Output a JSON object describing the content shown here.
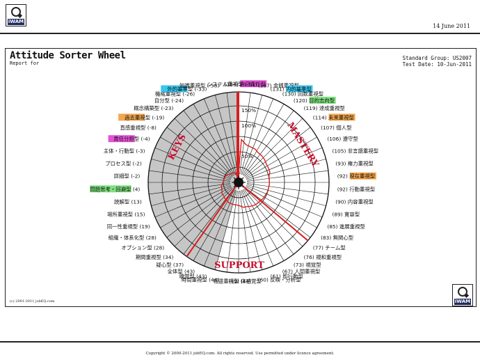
{
  "header": {
    "logo_text": "iWAM",
    "date": "14 June 2011"
  },
  "report": {
    "title": "Attitude Sorter Wheel",
    "subtitle": "Report for",
    "standard_group": "Standard Group: US2007",
    "test_date": "Test Date: 10-Jun-2011",
    "inner_copyright": "(c) 2001-2011 jobEQ.com"
  },
  "footer": {
    "copyright": "Copyright © 2000-2011 jobEQ.com. All rights reserved. Use permitted under licence agreement."
  },
  "colors": {
    "magenta": "#e451d6",
    "cyan": "#39c6f0",
    "green": "#7fe07f",
    "orange": "#f4a64e",
    "red": "#d62020",
    "wheel_fill": "#c6c6c6"
  },
  "chart_data": {
    "type": "radar",
    "title": "Attitude Sorter Wheel",
    "ring_labels": [
      "50%",
      "100%",
      "150%"
    ],
    "quadrants": [
      "KEYS",
      "MASTERY",
      "SUPPORT"
    ],
    "categories": [
      {
        "name": "自己責任型",
        "value": 164,
        "hl": "magenta"
      },
      {
        "name": "金銭重視型",
        "value": 137,
        "hl": ""
      },
      {
        "name": "内的基準型",
        "value": 131,
        "hl": "cyan"
      },
      {
        "name": "回数重視型",
        "value": 130,
        "hl": ""
      },
      {
        "name": "目的志向型",
        "value": 120,
        "hl": "green"
      },
      {
        "name": "達成重視型",
        "value": 119,
        "hl": ""
      },
      {
        "name": "未来重視型",
        "value": 114,
        "hl": "orange"
      },
      {
        "name": "個人型",
        "value": 107,
        "hl": ""
      },
      {
        "name": "遵守型",
        "value": 106,
        "hl": ""
      },
      {
        "name": "非言語重視型",
        "value": 105,
        "hl": ""
      },
      {
        "name": "権力重視型",
        "value": 93,
        "hl": ""
      },
      {
        "name": "現在重視型",
        "value": 92,
        "hl": "orange"
      },
      {
        "name": "行動重視型",
        "value": 92,
        "hl": ""
      },
      {
        "name": "内容重視型",
        "value": 90,
        "hl": ""
      },
      {
        "name": "寛容型",
        "value": 89,
        "hl": ""
      },
      {
        "name": "進展重視型",
        "value": 85,
        "hl": ""
      },
      {
        "name": "無関心型",
        "value": 83,
        "hl": ""
      },
      {
        "name": "チーム型",
        "value": 77,
        "hl": ""
      },
      {
        "name": "規和重視型",
        "value": 76,
        "hl": ""
      },
      {
        "name": "視覚型",
        "value": 73,
        "hl": ""
      },
      {
        "name": "人間重視型",
        "value": 67,
        "hl": ""
      },
      {
        "name": "即行動型",
        "value": 61,
        "hl": ""
      },
      {
        "name": "反映・分析型",
        "value": 60,
        "hl": ""
      },
      {
        "name": "体感覚型",
        "value": 49,
        "hl": ""
      },
      {
        "name": "相違重視型",
        "value": 44,
        "hl": ""
      },
      {
        "name": "時間重視型",
        "value": 44,
        "hl": ""
      },
      {
        "name": "聴覚型",
        "value": 43,
        "hl": ""
      },
      {
        "name": "全体型",
        "value": 43,
        "hl": ""
      },
      {
        "name": "疑心型",
        "value": 37,
        "hl": ""
      },
      {
        "name": "期間重視型",
        "value": 34,
        "hl": ""
      },
      {
        "name": "オプション型",
        "value": 28,
        "hl": ""
      },
      {
        "name": "組織・体系化型",
        "value": 28,
        "hl": ""
      },
      {
        "name": "同一性重視型",
        "value": 19,
        "hl": ""
      },
      {
        "name": "場所重視型",
        "value": 15,
        "hl": ""
      },
      {
        "name": "読解型",
        "value": 13,
        "hl": ""
      },
      {
        "name": "問題思考・回避型",
        "value": 4,
        "hl": "green"
      },
      {
        "name": "詳細型",
        "value": -2,
        "hl": ""
      },
      {
        "name": "プロセス型",
        "value": -2,
        "hl": ""
      },
      {
        "name": "主体・行動型",
        "value": -3,
        "hl": ""
      },
      {
        "name": "責任分担型",
        "value": -4,
        "hl": "magenta"
      },
      {
        "name": "直感重視型",
        "value": -8,
        "hl": ""
      },
      {
        "name": "過去重視型",
        "value": -19,
        "hl": "orange"
      },
      {
        "name": "概念構築型",
        "value": -23,
        "hl": ""
      },
      {
        "name": "自分型",
        "value": -24,
        "hl": ""
      },
      {
        "name": "機械重視型",
        "value": -26,
        "hl": ""
      },
      {
        "name": "外的基準型",
        "value": -33,
        "hl": "cyan"
      },
      {
        "name": "知識重視型",
        "value": -58,
        "hl": ""
      },
      {
        "name": "システム重視型",
        "value": -61,
        "hl": ""
      }
    ]
  }
}
